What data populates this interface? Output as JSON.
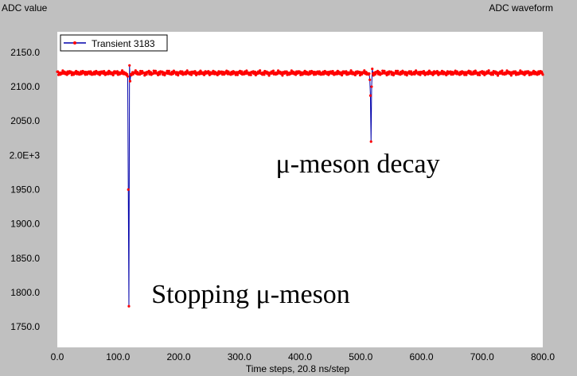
{
  "window": {
    "left_title": "ADC value",
    "right_title": "ADC waveform"
  },
  "chart_data": {
    "type": "line",
    "title": "ADC waveform",
    "xlabel": "Time steps, 20.8 ns/step",
    "ylabel": "ADC value",
    "xlim": [
      0,
      800
    ],
    "ylim": [
      1720,
      2180
    ],
    "x_ticks": [
      0,
      100,
      200,
      300,
      400,
      500,
      600,
      700,
      800
    ],
    "x_tick_labels": [
      "0.0",
      "100.0",
      "200.0",
      "300.0",
      "400.0",
      "500.0",
      "600.0",
      "700.0",
      "800.0"
    ],
    "y_ticks": [
      1750,
      1800,
      1850,
      1900,
      1950,
      2000,
      2050,
      2100,
      2150
    ],
    "y_tick_labels": [
      "1750.0",
      "1800.0",
      "1850.0",
      "1900.0",
      "1950.0",
      "2.0E+3",
      "2050.0",
      "2100.0",
      "2150.0"
    ],
    "grid": false,
    "legend_position": "top-left",
    "baseline": 2120,
    "series": [
      {
        "name": "Transient 3183",
        "line_color": "#0000aa",
        "marker_color": "#ff0000",
        "pulses": [
          {
            "x": [
              115,
              116,
              117,
              118,
              119,
              120,
              121
            ],
            "y": [
              2118,
              2115,
              1950,
              1780,
              2131,
              2108,
              2118
            ]
          },
          {
            "x": [
              514,
              515,
              516,
              517,
              518,
              519,
              520
            ],
            "y": [
              2119,
              2110,
              2087,
              2020,
              2100,
              2126,
              2119
            ]
          }
        ]
      }
    ],
    "annotations": [
      {
        "text": "μ-meson decay",
        "x": 360,
        "y": 1975
      },
      {
        "text": "Stopping μ-meson",
        "x": 155,
        "y": 1785
      }
    ]
  }
}
